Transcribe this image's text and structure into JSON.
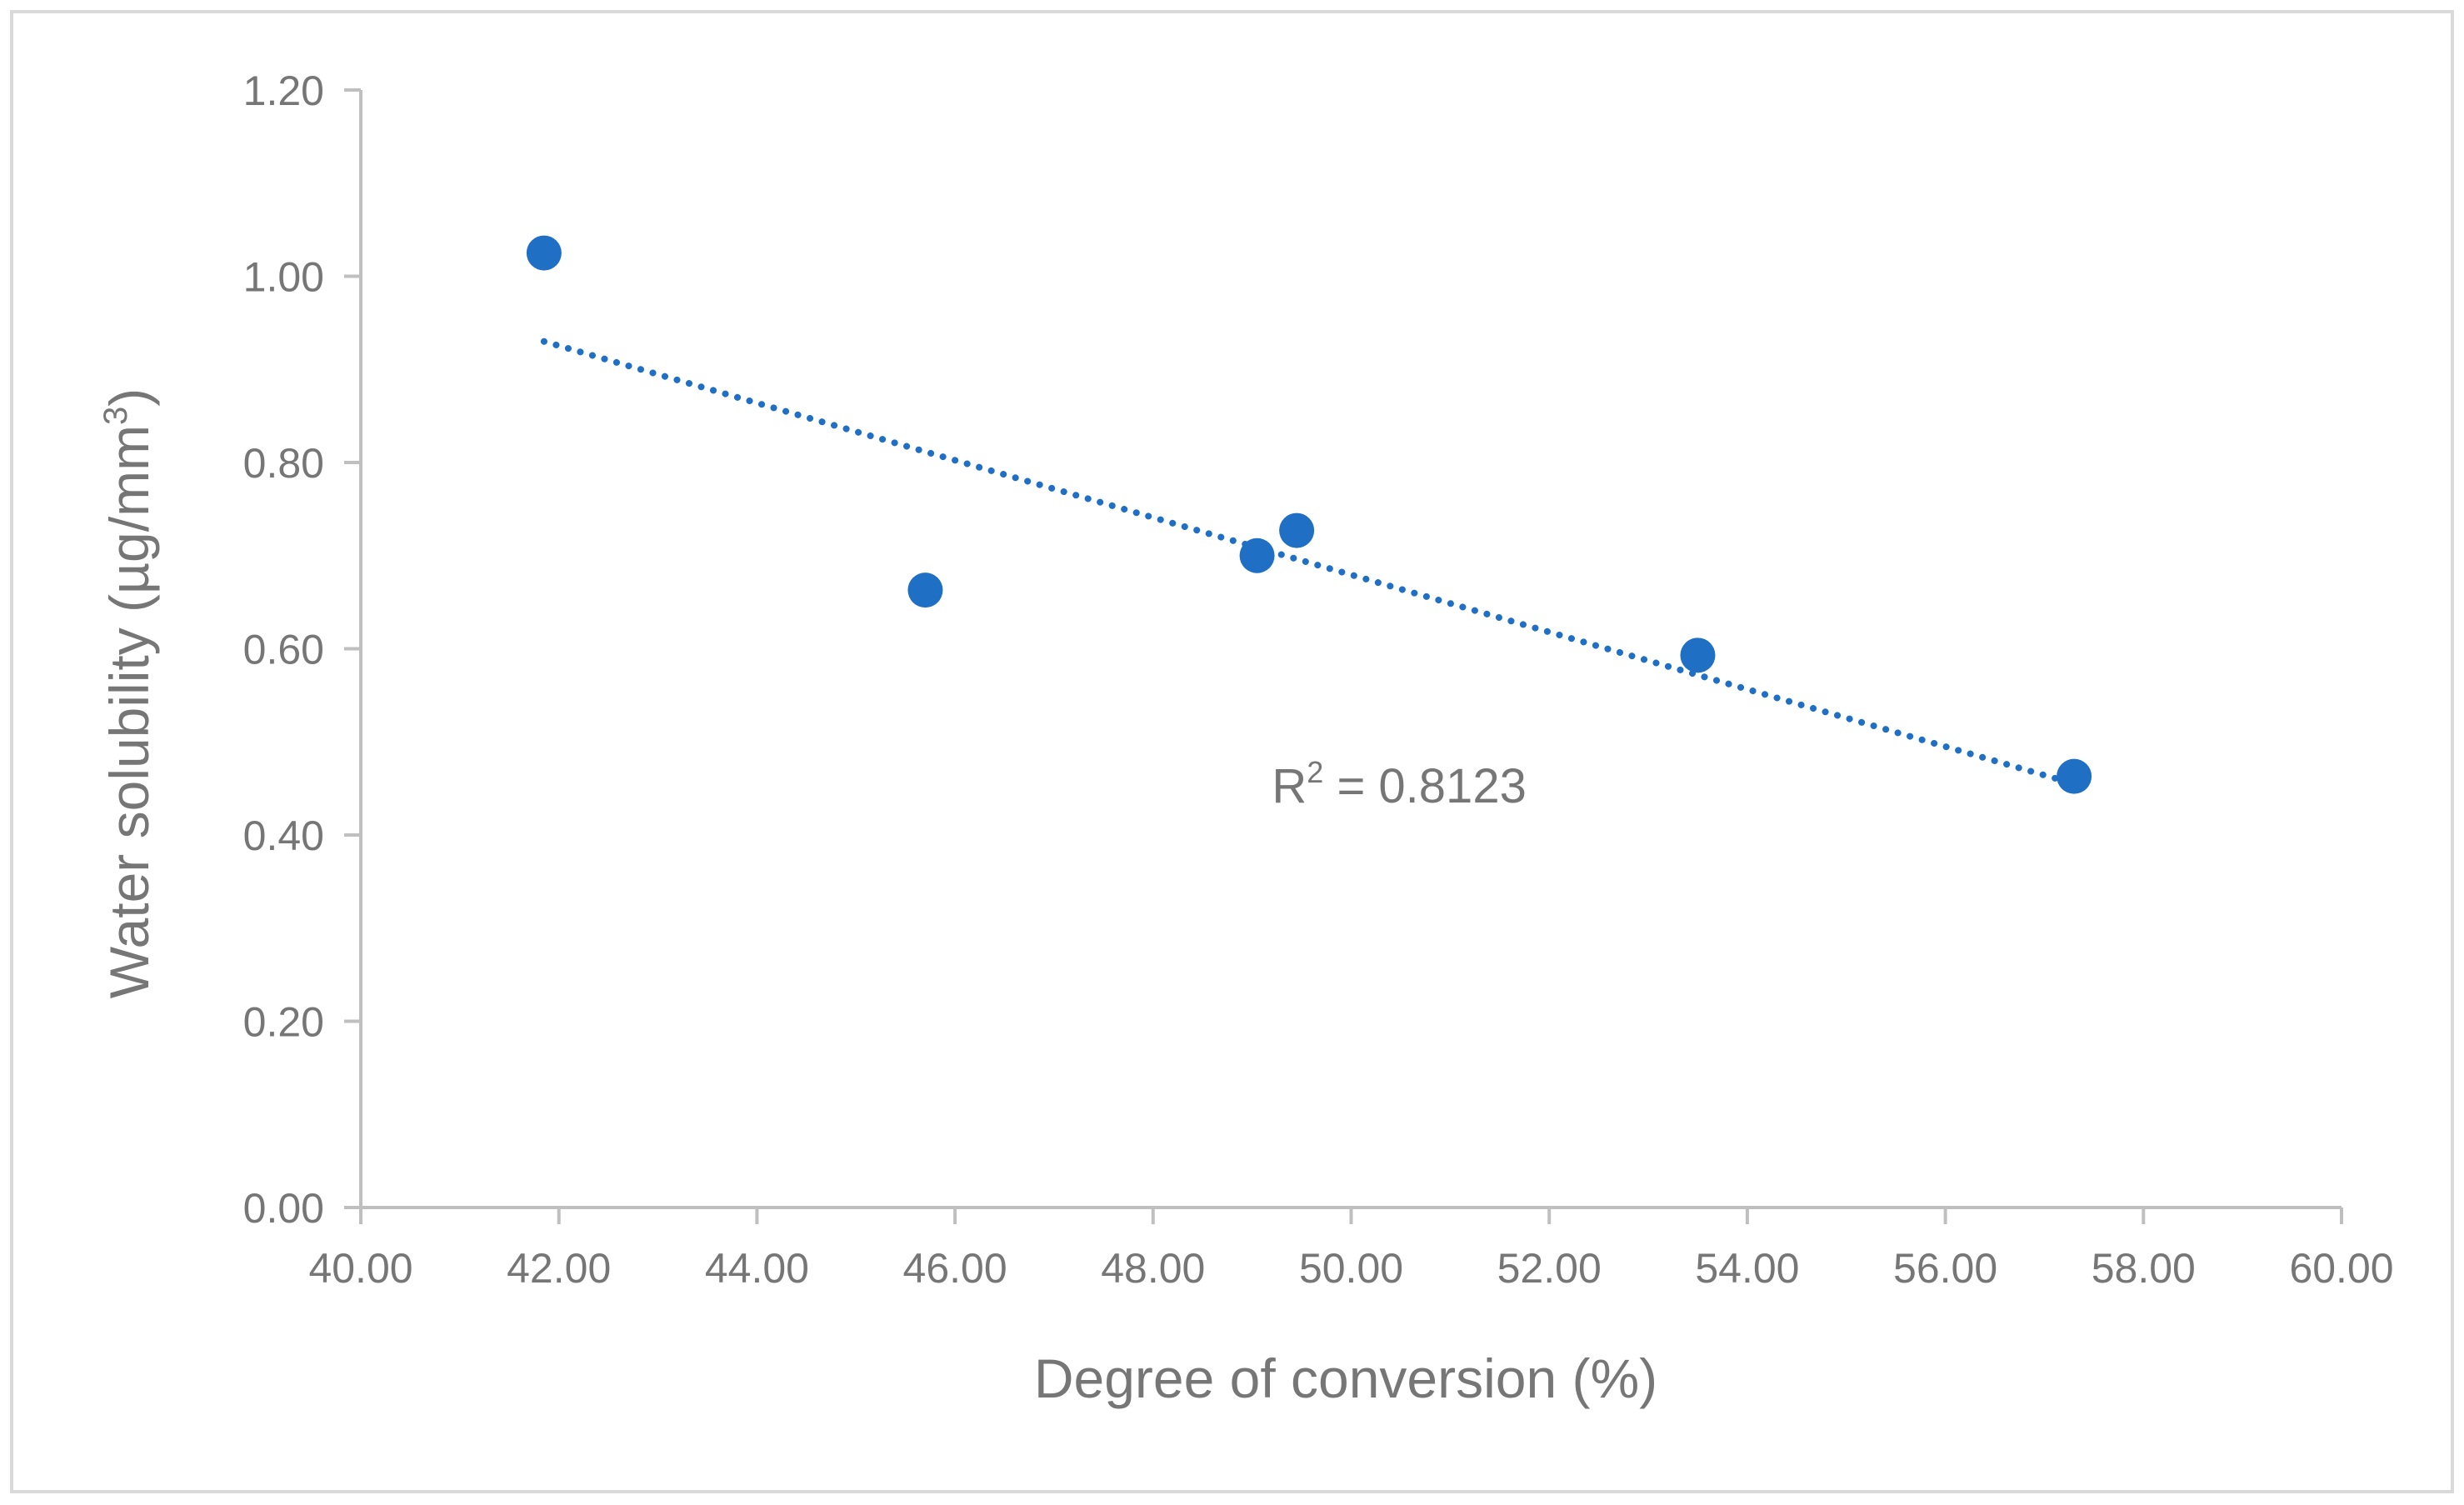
{
  "chart_data": {
    "type": "scatter",
    "title": "",
    "xlabel": "Degree of conversion (%)",
    "ylabel_main": "Water solubility (µg/mm",
    "ylabel_sup": "3",
    "ylabel_close": ")",
    "xlim": [
      40,
      60
    ],
    "ylim": [
      0,
      1.2
    ],
    "x_ticks": [
      40,
      42,
      44,
      46,
      48,
      50,
      52,
      54,
      56,
      58,
      60
    ],
    "y_ticks": [
      0,
      0.2,
      0.4,
      0.6,
      0.8,
      1.0,
      1.2
    ],
    "x_tick_labels": [
      "40.00",
      "42.00",
      "44.00",
      "46.00",
      "48.00",
      "50.00",
      "52.00",
      "54.00",
      "56.00",
      "58.00",
      "60.00"
    ],
    "y_tick_labels": [
      "0.00",
      "0.20",
      "0.40",
      "0.60",
      "0.80",
      "1.00",
      "1.20"
    ],
    "grid": false,
    "series": [
      {
        "name": "Water solubility",
        "color": "#1f6fc5",
        "points": [
          {
            "x": 41.85,
            "y": 1.025
          },
          {
            "x": 45.7,
            "y": 0.663
          },
          {
            "x": 49.05,
            "y": 0.7
          },
          {
            "x": 49.45,
            "y": 0.727
          },
          {
            "x": 53.5,
            "y": 0.593
          },
          {
            "x": 57.3,
            "y": 0.463
          }
        ]
      }
    ],
    "trendline": {
      "type": "linear",
      "style": "dotted",
      "color": "#1f6fc5",
      "x_start": 41.85,
      "y_start": 0.93,
      "x_end": 57.3,
      "y_end": 0.455
    },
    "annotation": {
      "base": "R",
      "sup": "2",
      "rest": " = 0.8123",
      "anchor_x": 49.2,
      "anchor_y": 0.435
    }
  },
  "colors": {
    "axis": "#bfbfbf",
    "text": "#767676",
    "frame": "#d9d9d9"
  }
}
